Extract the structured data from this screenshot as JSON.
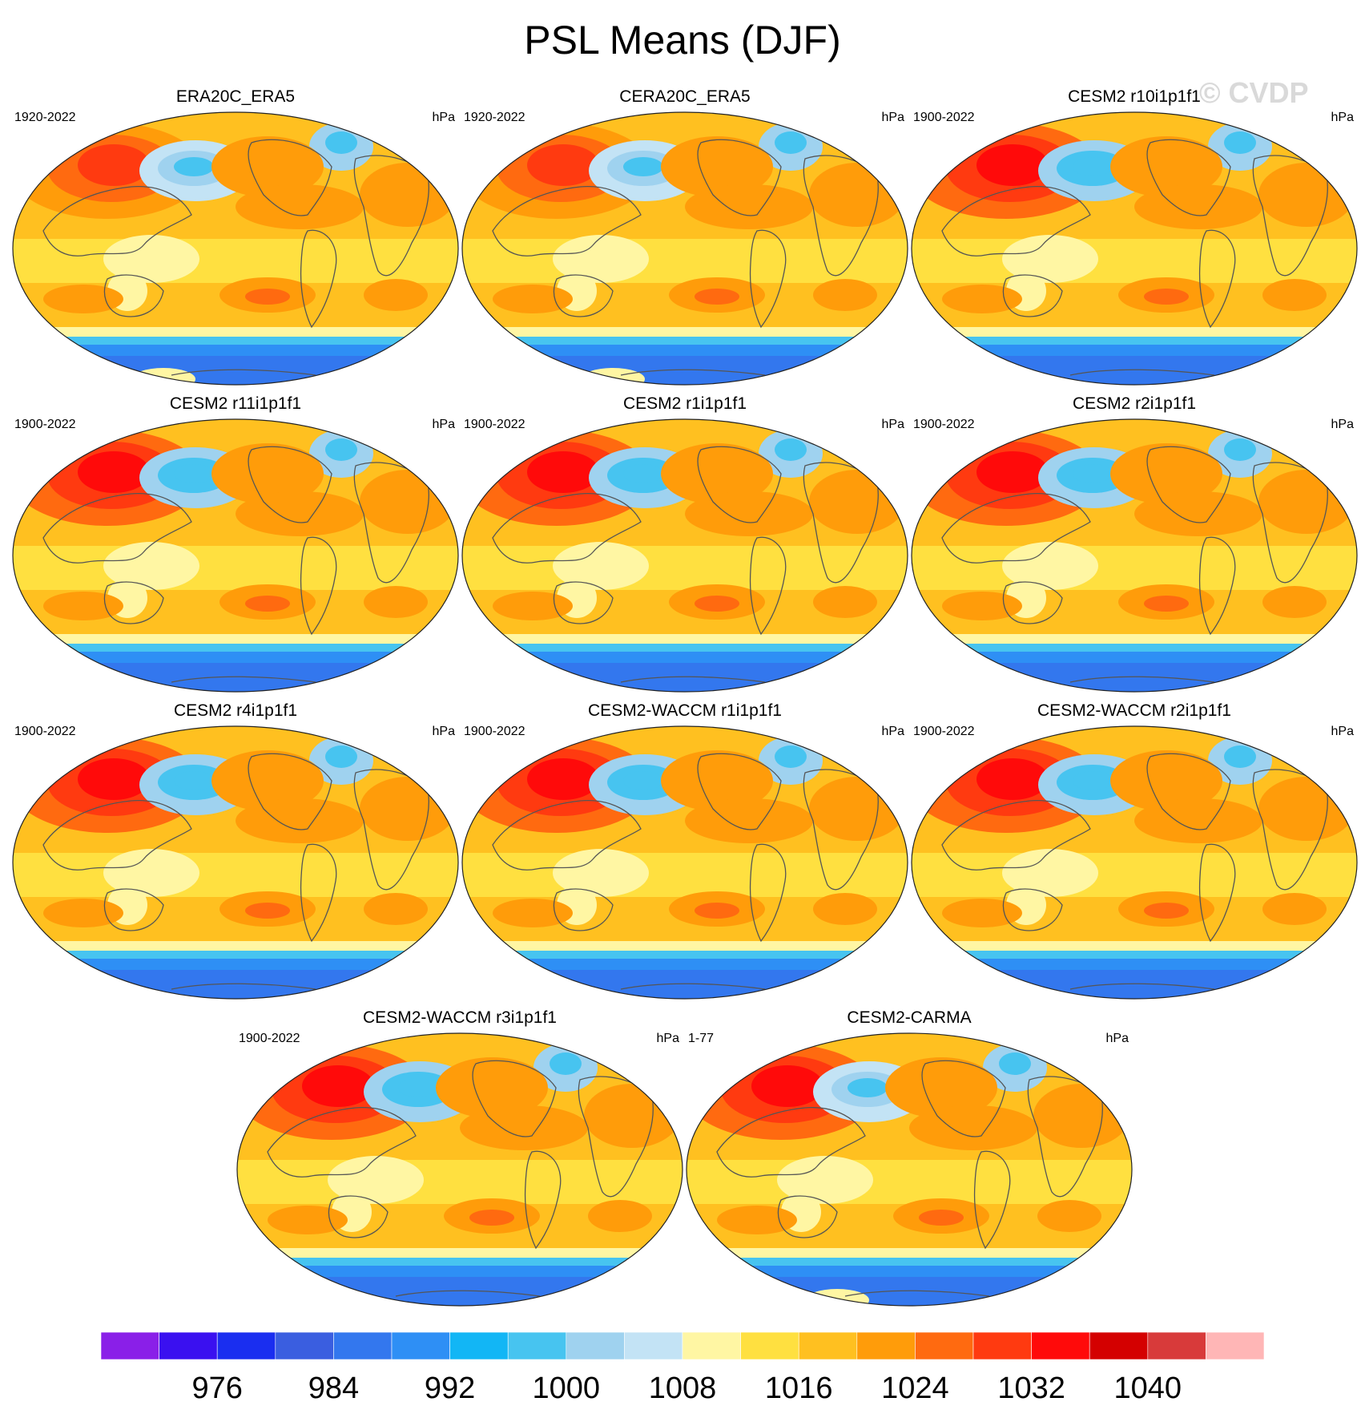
{
  "figure": {
    "title": "PSL Means (DJF)",
    "watermark": "© CVDP"
  },
  "chart_data": {
    "type": "heatmap",
    "title": "PSL Means (DJF)",
    "units": "hPa",
    "projection": "Robinson-like global map, Pacific-centered",
    "colorbar": {
      "tick_labels": [
        "976",
        "984",
        "992",
        "1000",
        "1008",
        "1016",
        "1024",
        "1032",
        "1040"
      ],
      "levels_min": 968,
      "levels_max": 1048,
      "interval": 4,
      "colors": [
        "#8a1fe8",
        "#3a10f0",
        "#1a2ef0",
        "#3a5ee0",
        "#3377ee",
        "#2e8ff5",
        "#12b6f5",
        "#47c4f0",
        "#9fd2ef",
        "#c3e3f5",
        "#fff6a3",
        "#ffe040",
        "#ffc020",
        "#ff9c0a",
        "#ff6a10",
        "#ff3a10",
        "#ff0a0a",
        "#d40000",
        "#d83a3a",
        "#ffb6b6"
      ]
    },
    "panels": [
      {
        "name": "ERA20C_ERA5",
        "period": "1920-2022",
        "units": "hPa",
        "antarctic_low": 0,
        "siberian_high": 1029,
        "aleutian_low": 998
      },
      {
        "name": "CERA20C_ERA5",
        "period": "1920-2022",
        "units": "hPa",
        "antarctic_low": 0,
        "siberian_high": 1029,
        "aleutian_low": 998
      },
      {
        "name": "CESM2 r10i1p1f1",
        "period": "1900-2022",
        "units": "hPa",
        "antarctic_low": 1,
        "siberian_high": 1034,
        "aleutian_low": 996
      },
      {
        "name": "CESM2 r11i1p1f1",
        "period": "1900-2022",
        "units": "hPa",
        "antarctic_low": 1,
        "siberian_high": 1034,
        "aleutian_low": 996
      },
      {
        "name": "CESM2 r1i1p1f1",
        "period": "1900-2022",
        "units": "hPa",
        "antarctic_low": 1,
        "siberian_high": 1034,
        "aleutian_low": 996
      },
      {
        "name": "CESM2 r2i1p1f1",
        "period": "1900-2022",
        "units": "hPa",
        "antarctic_low": 1,
        "siberian_high": 1034,
        "aleutian_low": 996
      },
      {
        "name": "CESM2 r4i1p1f1",
        "period": "1900-2022",
        "units": "hPa",
        "antarctic_low": 1,
        "siberian_high": 1034,
        "aleutian_low": 996
      },
      {
        "name": "CESM2-WACCM r1i1p1f1",
        "period": "1900-2022",
        "units": "hPa",
        "antarctic_low": 1,
        "siberian_high": 1034,
        "aleutian_low": 996
      },
      {
        "name": "CESM2-WACCM r2i1p1f1",
        "period": "1900-2022",
        "units": "hPa",
        "antarctic_low": 1,
        "siberian_high": 1034,
        "aleutian_low": 996
      },
      {
        "name": "CESM2-WACCM r3i1p1f1",
        "period": "1900-2022",
        "units": "hPa",
        "antarctic_low": 1,
        "siberian_high": 1034,
        "aleutian_low": 996
      },
      {
        "name": "CESM2-CARMA",
        "period": "1-77",
        "units": "hPa",
        "antarctic_low": 0,
        "siberian_high": 1035,
        "aleutian_low": 998
      }
    ]
  }
}
